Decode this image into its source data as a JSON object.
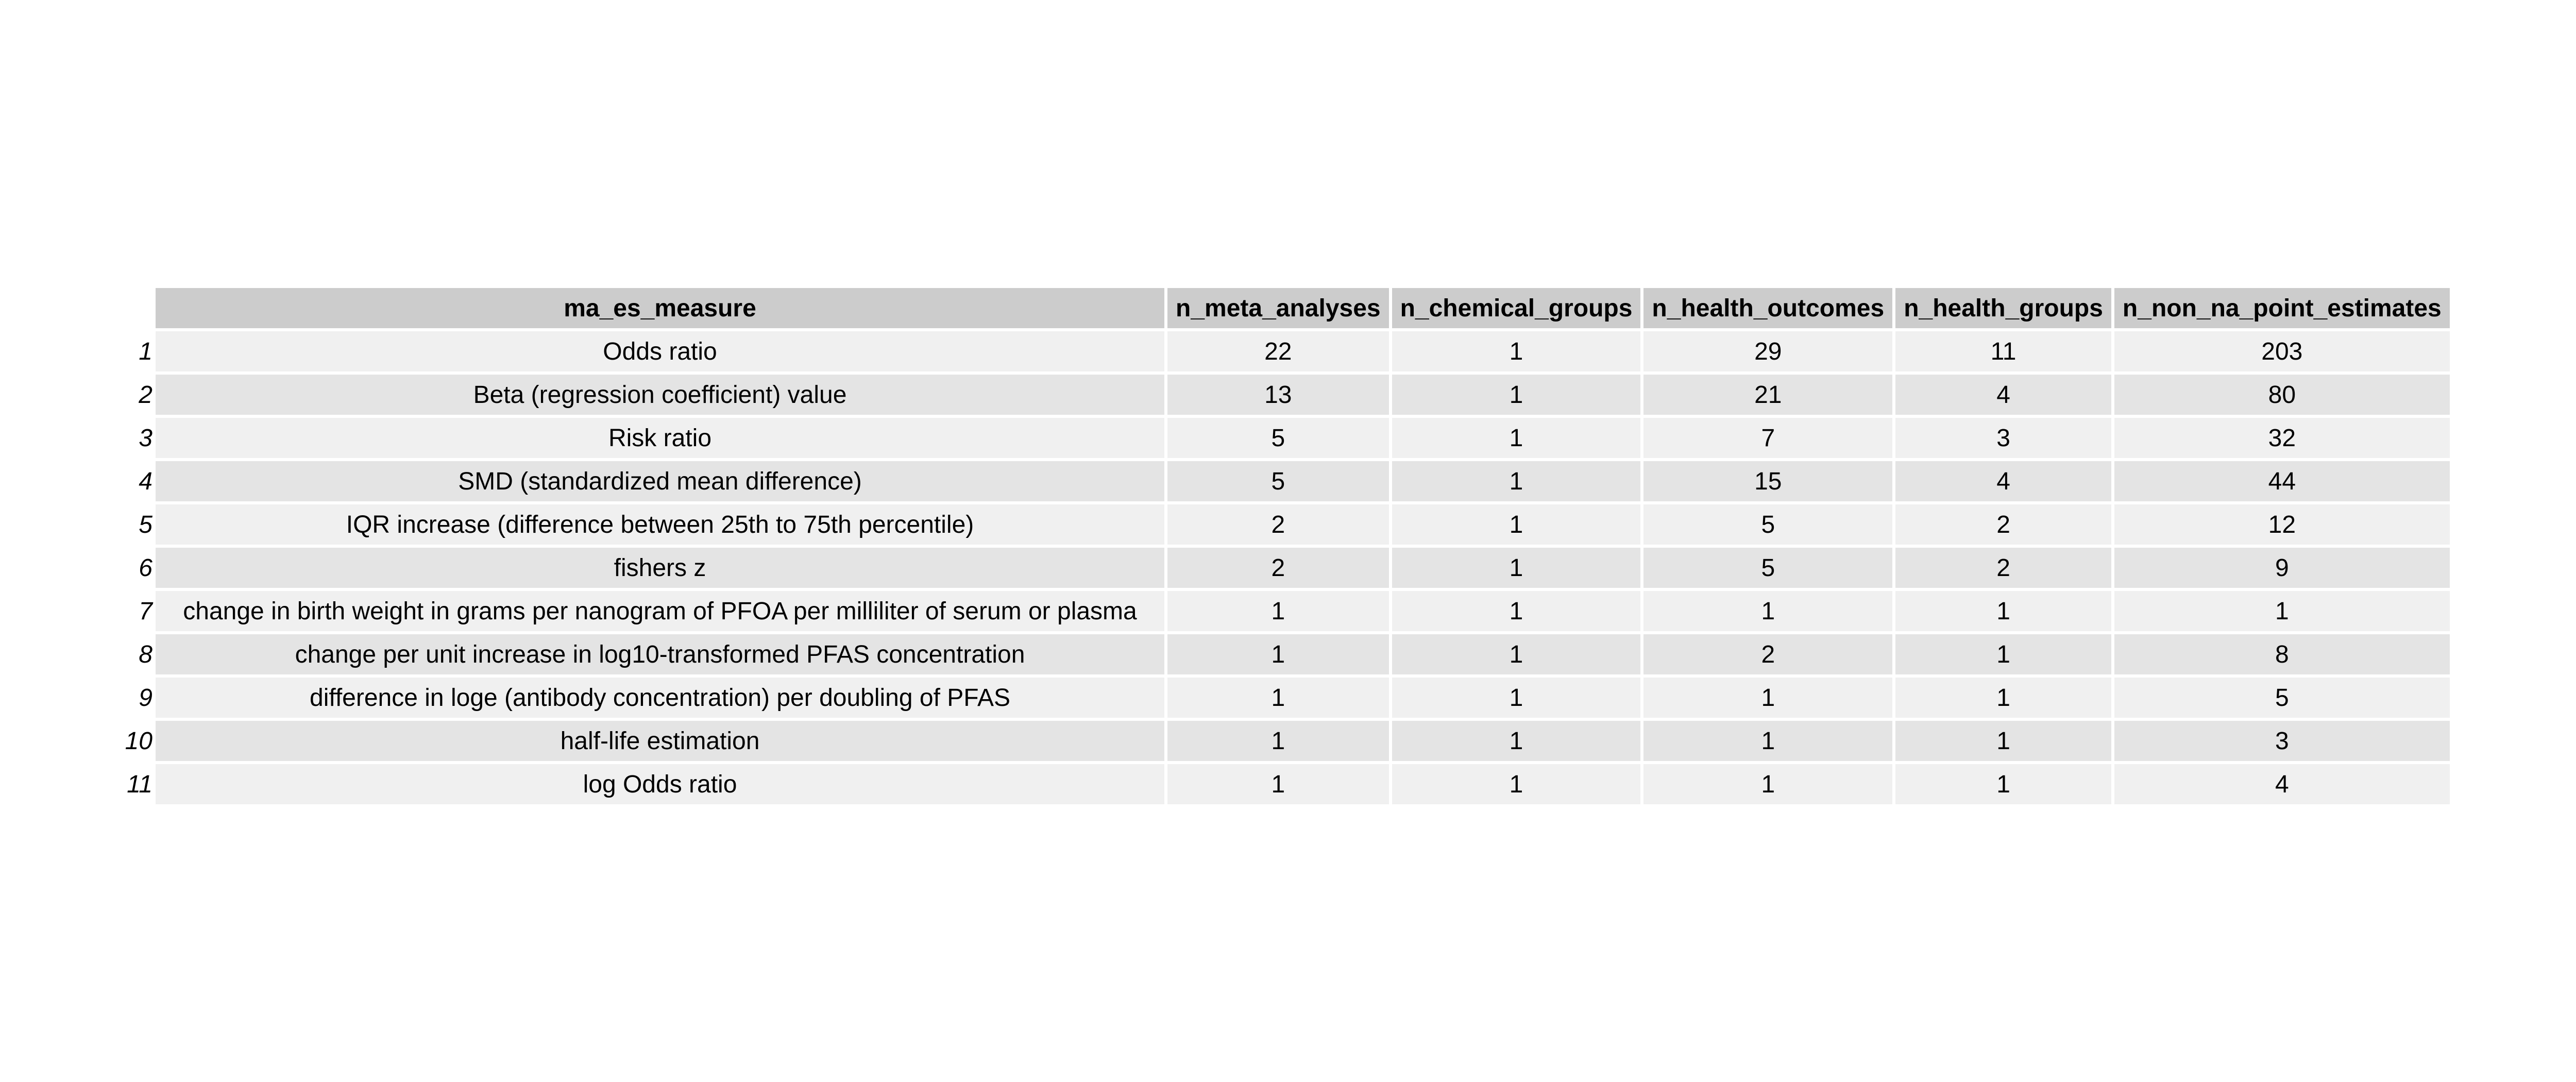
{
  "chart_data": {
    "type": "table",
    "columns": [
      "ma_es_measure",
      "n_meta_analyses",
      "n_chemical_groups",
      "n_health_outcomes",
      "n_health_groups",
      "n_non_na_point_estimates"
    ],
    "rows": [
      {
        "row_label": "1",
        "values": [
          "Odds ratio",
          "22",
          "1",
          "29",
          "11",
          "203"
        ]
      },
      {
        "row_label": "2",
        "values": [
          "Beta (regression coefficient) value",
          "13",
          "1",
          "21",
          "4",
          "80"
        ]
      },
      {
        "row_label": "3",
        "values": [
          "Risk ratio",
          "5",
          "1",
          "7",
          "3",
          "32"
        ]
      },
      {
        "row_label": "4",
        "values": [
          "SMD (standardized mean difference)",
          "5",
          "1",
          "15",
          "4",
          "44"
        ]
      },
      {
        "row_label": "5",
        "values": [
          "IQR increase (difference between 25th to 75th percentile)",
          "2",
          "1",
          "5",
          "2",
          "12"
        ]
      },
      {
        "row_label": "6",
        "values": [
          "fishers z",
          "2",
          "1",
          "5",
          "2",
          "9"
        ]
      },
      {
        "row_label": "7",
        "values": [
          "change in birth weight in grams per nanogram of PFOA per milliliter of serum or plasma",
          "1",
          "1",
          "1",
          "1",
          "1"
        ]
      },
      {
        "row_label": "8",
        "values": [
          "change per unit increase in log10-transformed PFAS concentration",
          "1",
          "1",
          "2",
          "1",
          "8"
        ]
      },
      {
        "row_label": "9",
        "values": [
          "difference in loge (antibody concentration) per doubling of PFAS",
          "1",
          "1",
          "1",
          "1",
          "5"
        ]
      },
      {
        "row_label": "10",
        "values": [
          "half-life estimation",
          "1",
          "1",
          "1",
          "1",
          "3"
        ]
      },
      {
        "row_label": "11",
        "values": [
          "log Odds ratio",
          "1",
          "1",
          "1",
          "1",
          "4"
        ]
      }
    ],
    "colors": {
      "header_bg": "#cccccc",
      "row_odd_bg": "#f0f0f0",
      "row_even_bg": "#e4e4e4",
      "grid_lines": "#ffffff"
    }
  }
}
